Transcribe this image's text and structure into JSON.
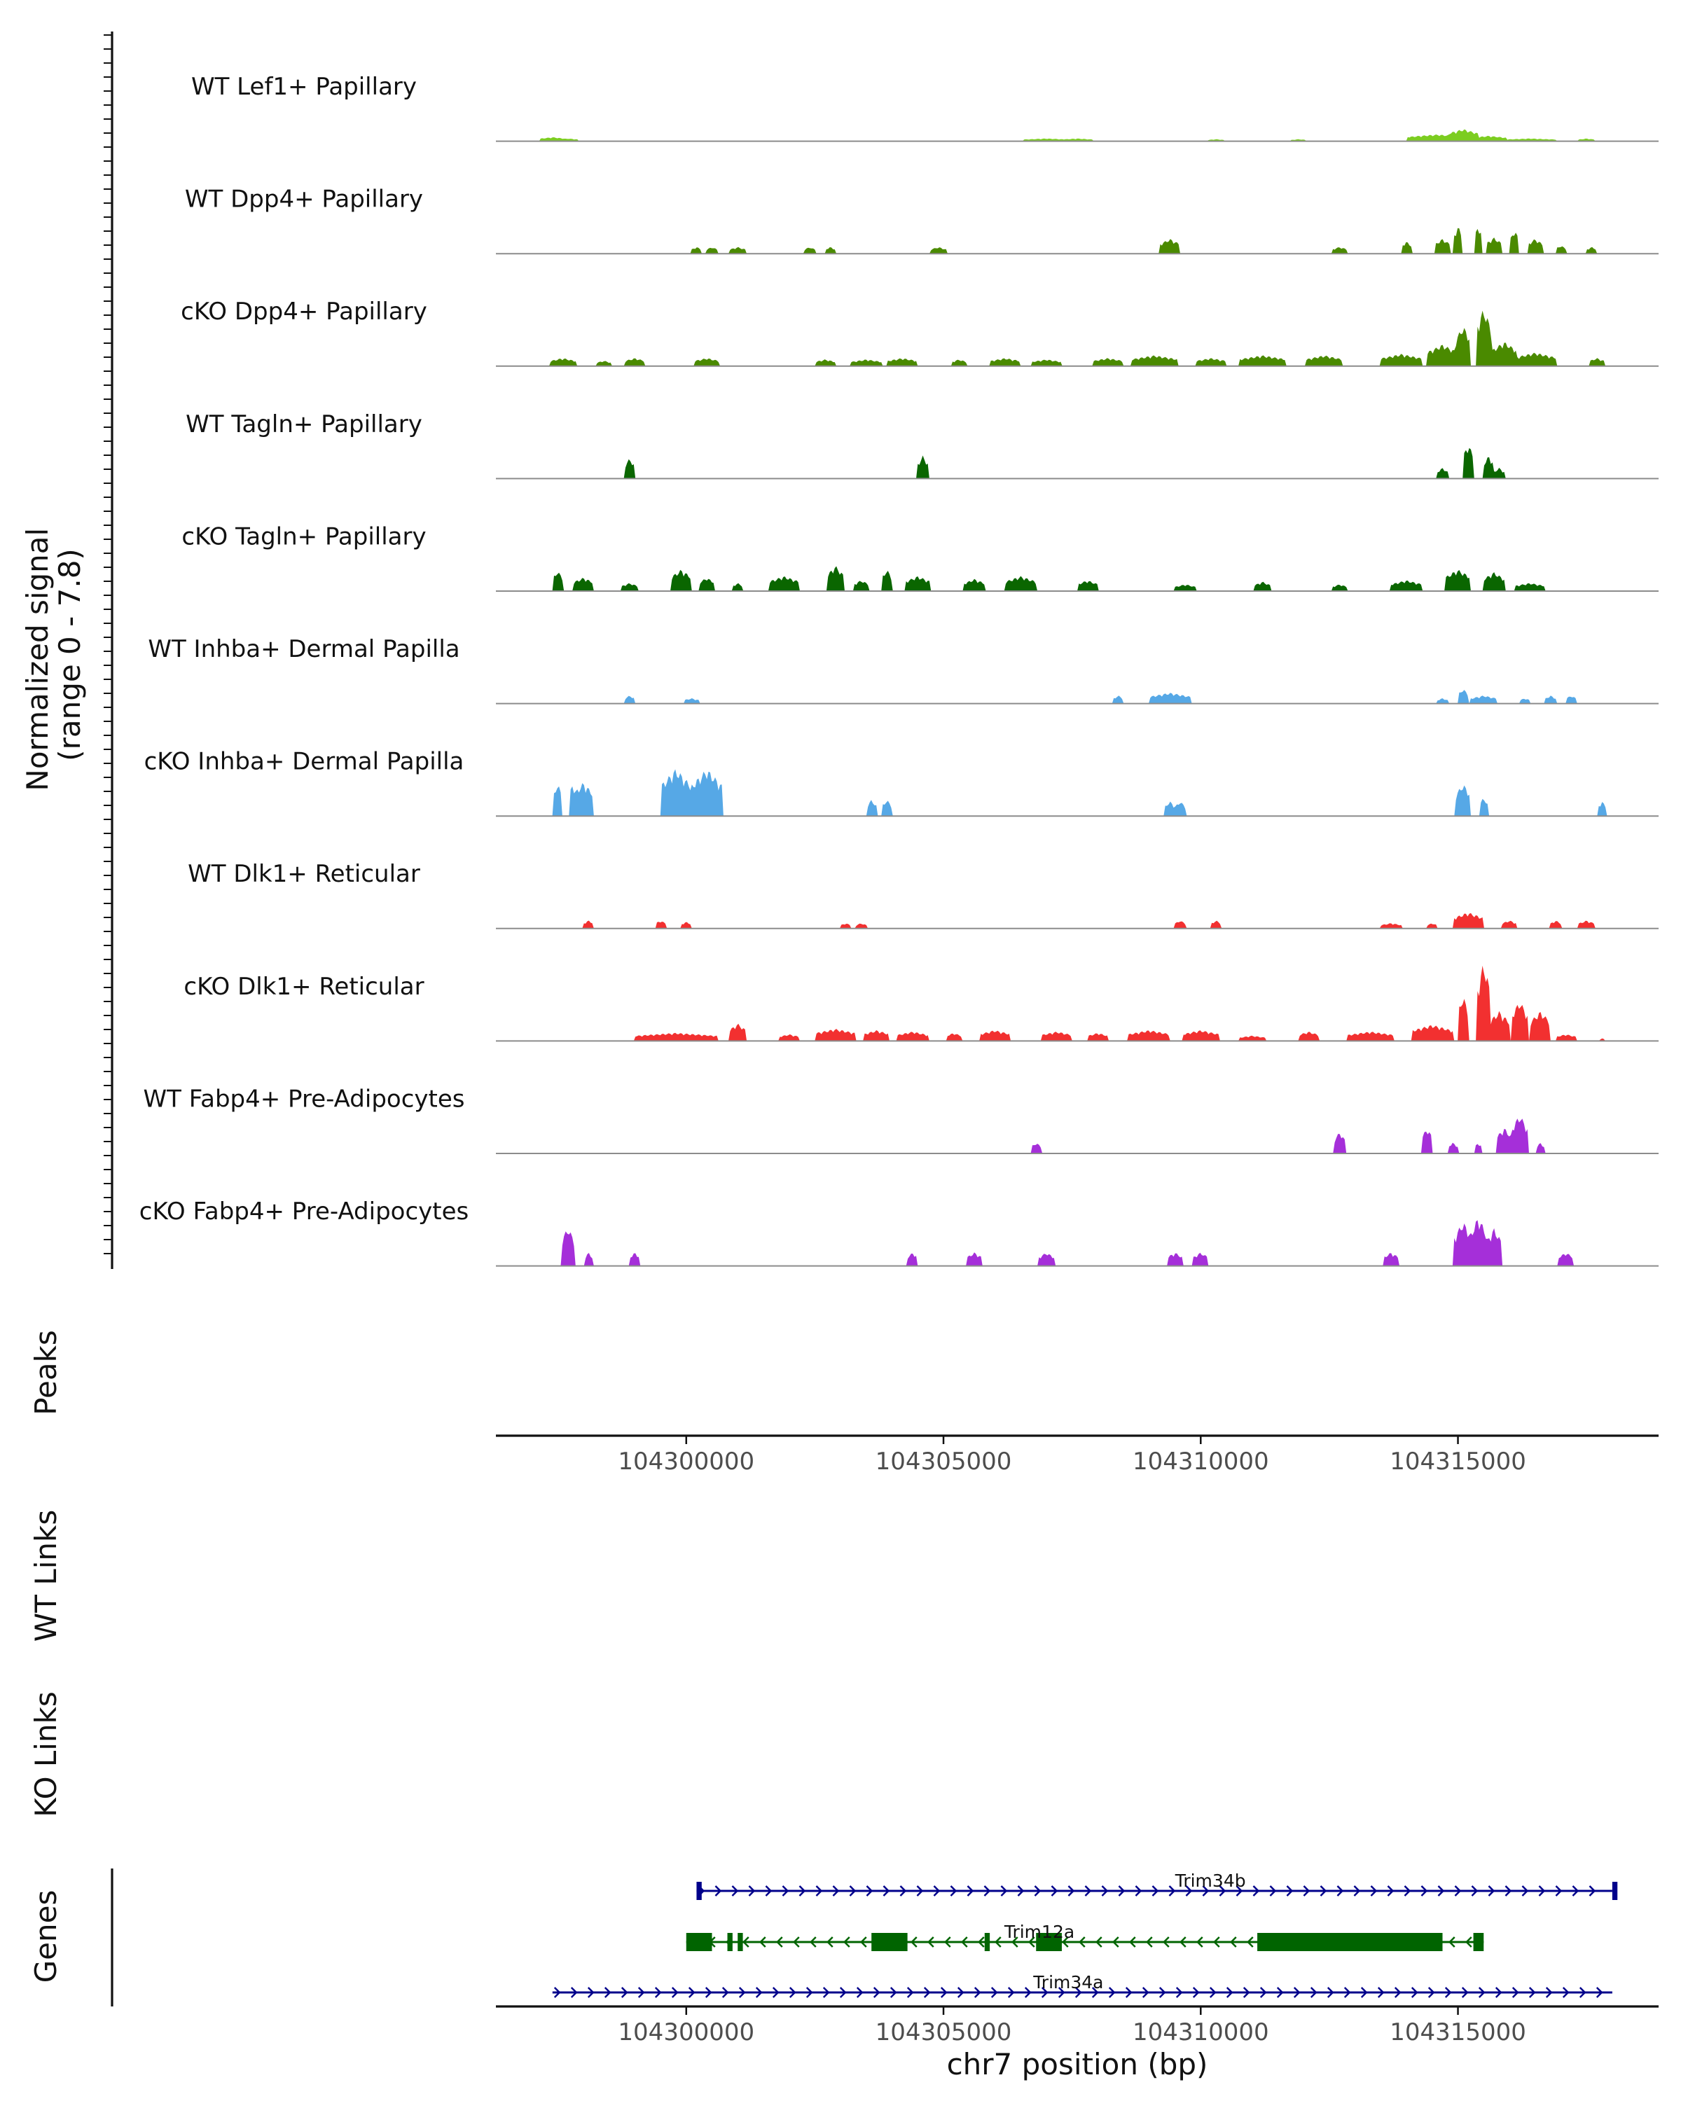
{
  "chart_data": {
    "type": "area",
    "title": "",
    "ylabel": [
      "Normalized signal",
      "(range 0 - 7.8)"
    ],
    "ylim": [
      0,
      7.8
    ],
    "xlabel": "chr7 position (bp)",
    "xlim": [
      104296300,
      104318900
    ],
    "x_ticks": [
      104300000,
      104305000,
      104310000,
      104315000
    ],
    "x_tick_labels": [
      "104300000",
      "104305000",
      "104310000",
      "104315000"
    ],
    "panel_labels": {
      "peaks": "Peaks",
      "wt_links": "WT Links",
      "ko_links": "KO Links",
      "genes": "Genes"
    },
    "tracks": [
      {
        "name": "WT Lef1+ Papillary",
        "color": "#7ccd20",
        "peaks": [
          [
            104297400,
            0.3,
            0.5
          ],
          [
            104297700,
            0.2,
            0.4
          ],
          [
            104307000,
            0.2,
            0.9
          ],
          [
            104307600,
            0.2,
            0.6
          ],
          [
            104310300,
            0.15,
            0.3
          ],
          [
            104311900,
            0.15,
            0.3
          ],
          [
            104314600,
            0.5,
            1.2
          ],
          [
            104315100,
            0.9,
            0.6
          ],
          [
            104315600,
            0.4,
            0.7
          ],
          [
            104316400,
            0.2,
            1.0
          ],
          [
            104317500,
            0.2,
            0.3
          ]
        ]
      },
      {
        "name": "WT Dpp4+ Papillary",
        "color": "#4a8a00",
        "peaks": [
          [
            104300200,
            0.5,
            0.2
          ],
          [
            104300500,
            0.5,
            0.2
          ],
          [
            104301000,
            0.5,
            0.3
          ],
          [
            104302400,
            0.5,
            0.2
          ],
          [
            104302800,
            0.5,
            0.2
          ],
          [
            104304900,
            0.5,
            0.3
          ],
          [
            104309400,
            1.1,
            0.4
          ],
          [
            104312700,
            0.5,
            0.3
          ],
          [
            104314000,
            0.9,
            0.2
          ],
          [
            104314700,
            1.1,
            0.3
          ],
          [
            104315000,
            2.1,
            0.15
          ],
          [
            104315400,
            2.1,
            0.15
          ],
          [
            104315700,
            1.2,
            0.3
          ],
          [
            104316100,
            1.8,
            0.15
          ],
          [
            104316500,
            1.1,
            0.3
          ],
          [
            104317000,
            0.6,
            0.2
          ],
          [
            104317600,
            0.5,
            0.2
          ]
        ]
      },
      {
        "name": "cKO Dpp4+ Papillary",
        "color": "#4a8a00",
        "peaks": [
          [
            104297600,
            0.6,
            0.5
          ],
          [
            104298400,
            0.4,
            0.3
          ],
          [
            104299000,
            0.6,
            0.4
          ],
          [
            104300400,
            0.6,
            0.5
          ],
          [
            104302700,
            0.5,
            0.4
          ],
          [
            104303500,
            0.5,
            0.6
          ],
          [
            104304200,
            0.6,
            0.6
          ],
          [
            104305300,
            0.5,
            0.3
          ],
          [
            104306200,
            0.6,
            0.6
          ],
          [
            104307000,
            0.5,
            0.6
          ],
          [
            104308200,
            0.6,
            0.6
          ],
          [
            104309100,
            0.8,
            0.9
          ],
          [
            104310200,
            0.6,
            0.6
          ],
          [
            104311200,
            0.8,
            0.9
          ],
          [
            104312400,
            0.8,
            0.7
          ],
          [
            104313900,
            0.9,
            0.8
          ],
          [
            104314700,
            1.6,
            0.6
          ],
          [
            104315100,
            3.0,
            0.3
          ],
          [
            104315500,
            4.3,
            0.3
          ],
          [
            104315900,
            1.8,
            0.5
          ],
          [
            104316500,
            1.0,
            0.8
          ],
          [
            104317700,
            0.6,
            0.3
          ]
        ]
      },
      {
        "name": "WT Tagln+ Papillary",
        "color": "#0a6600",
        "peaks": [
          [
            104298900,
            1.5,
            0.2
          ],
          [
            104304600,
            1.7,
            0.2
          ],
          [
            104314700,
            0.8,
            0.2
          ],
          [
            104315200,
            2.6,
            0.2
          ],
          [
            104315600,
            1.7,
            0.2
          ],
          [
            104315800,
            0.8,
            0.2
          ]
        ]
      },
      {
        "name": "cKO Tagln+ Papillary",
        "color": "#0a6600",
        "peaks": [
          [
            104297500,
            1.5,
            0.2
          ],
          [
            104298000,
            1.0,
            0.4
          ],
          [
            104298900,
            0.6,
            0.3
          ],
          [
            104299900,
            1.6,
            0.4
          ],
          [
            104300400,
            1.0,
            0.3
          ],
          [
            104301000,
            0.6,
            0.2
          ],
          [
            104301900,
            1.1,
            0.6
          ],
          [
            104302900,
            1.9,
            0.3
          ],
          [
            104303400,
            0.8,
            0.3
          ],
          [
            104303900,
            1.6,
            0.2
          ],
          [
            104304500,
            1.1,
            0.5
          ],
          [
            104305600,
            0.9,
            0.4
          ],
          [
            104306500,
            1.1,
            0.6
          ],
          [
            104307800,
            0.8,
            0.4
          ],
          [
            104309700,
            0.5,
            0.4
          ],
          [
            104311200,
            0.7,
            0.3
          ],
          [
            104312700,
            0.5,
            0.3
          ],
          [
            104314000,
            0.8,
            0.6
          ],
          [
            104315000,
            1.6,
            0.5
          ],
          [
            104315700,
            1.4,
            0.4
          ],
          [
            104316400,
            0.6,
            0.6
          ]
        ]
      },
      {
        "name": "WT Inhba+ Dermal Papilla",
        "color": "#56a8e6",
        "peaks": [
          [
            104298900,
            0.6,
            0.2
          ],
          [
            104300100,
            0.4,
            0.3
          ],
          [
            104308400,
            0.6,
            0.2
          ],
          [
            104309400,
            0.8,
            0.8
          ],
          [
            104314700,
            0.4,
            0.2
          ],
          [
            104315100,
            1.1,
            0.2
          ],
          [
            104315500,
            0.6,
            0.5
          ],
          [
            104316300,
            0.4,
            0.2
          ],
          [
            104316800,
            0.6,
            0.2
          ],
          [
            104317200,
            0.6,
            0.2
          ]
        ]
      },
      {
        "name": "cKO Inhba+ Dermal Papilla",
        "color": "#56a8e6",
        "peaks": [
          [
            104297500,
            2.5,
            0.15
          ],
          [
            104297800,
            2.5,
            0.15
          ],
          [
            104298000,
            2.5,
            0.4
          ],
          [
            104299800,
            3.5,
            0.6
          ],
          [
            104300400,
            3.5,
            0.6
          ],
          [
            104303600,
            1.2,
            0.2
          ],
          [
            104303900,
            1.2,
            0.2
          ],
          [
            104309400,
            1.1,
            0.2
          ],
          [
            104309600,
            1.1,
            0.2
          ],
          [
            104315100,
            2.4,
            0.3
          ],
          [
            104315500,
            1.4,
            0.15
          ],
          [
            104317800,
            1.1,
            0.15
          ]
        ]
      },
      {
        "name": "WT Dlk1+ Reticular",
        "color": "#f23030",
        "peaks": [
          [
            104298100,
            0.6,
            0.2
          ],
          [
            104299500,
            0.6,
            0.2
          ],
          [
            104300000,
            0.5,
            0.2
          ],
          [
            104303100,
            0.4,
            0.2
          ],
          [
            104303400,
            0.4,
            0.2
          ],
          [
            104309600,
            0.6,
            0.2
          ],
          [
            104310300,
            0.6,
            0.2
          ],
          [
            104313700,
            0.4,
            0.4
          ],
          [
            104314500,
            0.4,
            0.2
          ],
          [
            104315200,
            1.2,
            0.6
          ],
          [
            104316000,
            0.6,
            0.3
          ],
          [
            104316900,
            0.6,
            0.2
          ],
          [
            104317500,
            0.6,
            0.3
          ]
        ]
      },
      {
        "name": "cKO Dlk1+ Reticular",
        "color": "#f23030",
        "peaks": [
          [
            104299800,
            0.6,
            1.6
          ],
          [
            104301000,
            1.3,
            0.3
          ],
          [
            104302000,
            0.5,
            0.4
          ],
          [
            104302900,
            0.9,
            0.8
          ],
          [
            104303700,
            0.8,
            0.5
          ],
          [
            104304400,
            0.7,
            0.6
          ],
          [
            104305200,
            0.6,
            0.3
          ],
          [
            104306000,
            0.8,
            0.6
          ],
          [
            104307200,
            0.7,
            0.6
          ],
          [
            104308000,
            0.6,
            0.4
          ],
          [
            104309000,
            0.8,
            0.8
          ],
          [
            104310000,
            0.8,
            0.7
          ],
          [
            104311000,
            0.4,
            0.5
          ],
          [
            104312100,
            0.7,
            0.4
          ],
          [
            104313300,
            0.7,
            0.9
          ],
          [
            104314500,
            1.2,
            0.8
          ],
          [
            104315100,
            3.4,
            0.2
          ],
          [
            104315500,
            5.9,
            0.25
          ],
          [
            104315800,
            2.2,
            0.4
          ],
          [
            104316200,
            3.0,
            0.3
          ],
          [
            104316600,
            2.2,
            0.4
          ],
          [
            104317100,
            0.5,
            0.4
          ],
          [
            104317800,
            0.2,
            0.1
          ]
        ]
      },
      {
        "name": "WT Fabp4+ Pre-Adipocytes",
        "color": "#a52fd9",
        "peaks": [
          [
            104306800,
            0.8,
            0.2
          ],
          [
            104312700,
            1.6,
            0.2
          ],
          [
            104314400,
            1.9,
            0.2
          ],
          [
            104314900,
            0.8,
            0.2
          ],
          [
            104315400,
            0.8,
            0.15
          ],
          [
            104315900,
            1.9,
            0.3
          ],
          [
            104316200,
            2.9,
            0.3
          ],
          [
            104316600,
            0.8,
            0.15
          ]
        ]
      },
      {
        "name": "cKO Fabp4+ Pre-Adipocytes",
        "color": "#a52fd9",
        "peaks": [
          [
            104297700,
            2.9,
            0.25
          ],
          [
            104298100,
            1.0,
            0.15
          ],
          [
            104299000,
            1.0,
            0.2
          ],
          [
            104304400,
            1.0,
            0.2
          ],
          [
            104305600,
            1.0,
            0.3
          ],
          [
            104307000,
            1.0,
            0.3
          ],
          [
            104309500,
            1.0,
            0.3
          ],
          [
            104310000,
            1.0,
            0.3
          ],
          [
            104313700,
            1.0,
            0.3
          ],
          [
            104315100,
            3.3,
            0.35
          ],
          [
            104315400,
            3.7,
            0.3
          ],
          [
            104315700,
            2.8,
            0.3
          ],
          [
            104317100,
            1.0,
            0.3
          ]
        ]
      }
    ],
    "genes": [
      {
        "name": "Trim34b",
        "start": 104300200,
        "end": 104318000,
        "strand": "+",
        "color": "#00008b",
        "exons": [
          [
            104300200,
            104300300
          ],
          [
            104318000,
            104318100
          ]
        ]
      },
      {
        "name": "Trim12a",
        "start": 104300000,
        "end": 104315500,
        "strand": "-",
        "color": "#006400",
        "exons": [
          [
            104300000,
            104300500
          ],
          [
            104300800,
            104300900
          ],
          [
            104301000,
            104301100
          ],
          [
            104303600,
            104304300
          ],
          [
            104305800,
            104305900
          ],
          [
            104306800,
            104307300
          ],
          [
            104311100,
            104314700
          ],
          [
            104315300,
            104315500
          ]
        ]
      },
      {
        "name": "Trim34a",
        "start": 104297400,
        "end": 104318000,
        "strand": "+",
        "color": "#00008b",
        "exons": []
      }
    ]
  }
}
